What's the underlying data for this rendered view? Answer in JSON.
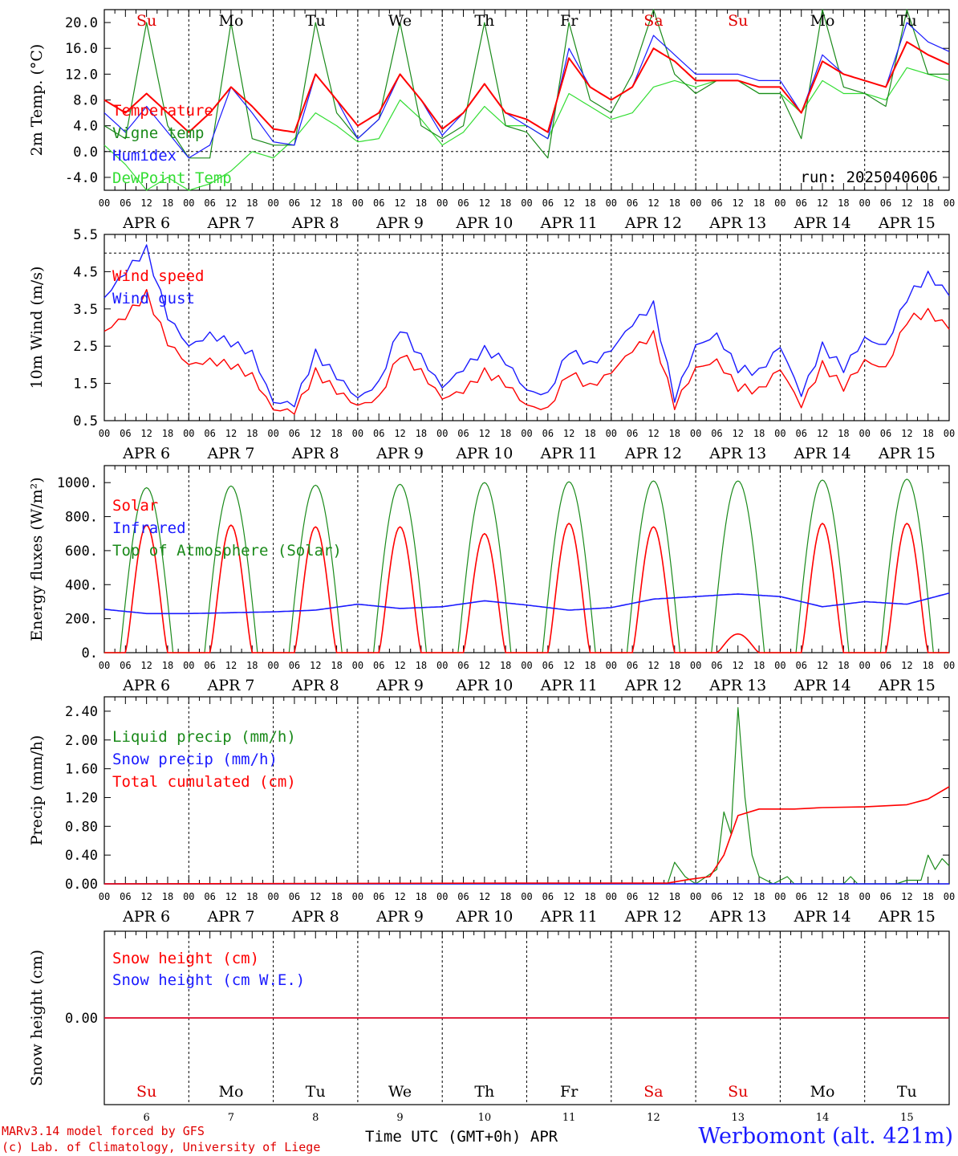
{
  "days": {
    "abbr": [
      "Su",
      "Mo",
      "Tu",
      "We",
      "Th",
      "Fr",
      "Sa",
      "Su",
      "Mo",
      "Tu"
    ],
    "abbr_colors": [
      "#e00000",
      "#000000",
      "#000000",
      "#000000",
      "#000000",
      "#000000",
      "#e00000",
      "#e00000",
      "#000000",
      "#000000"
    ],
    "dates": [
      "APR  6",
      "APR  7",
      "APR  8",
      "APR  9",
      "APR 10",
      "APR 11",
      "APR 12",
      "APR 13",
      "APR 14",
      "APR 15"
    ],
    "numbers": [
      "6",
      "7",
      "8",
      "9",
      "10",
      "11",
      "12",
      "13",
      "14",
      "15"
    ],
    "hour_ticks": [
      "00",
      "06",
      "12",
      "18"
    ],
    "end_tick": "00"
  },
  "footer": {
    "credit_line1": "MARv3.14 model forced by GFS",
    "credit_line2": "(c) Lab. of Climatology, University of Liege",
    "xaxis_title": "Time UTC (GMT+0h) APR",
    "station": "Werbomont (alt. 421m)"
  },
  "colors": {
    "red": "#ff0000",
    "green": "#1a8a1a",
    "blue": "#1a1aff",
    "lightgreen": "#33dd33"
  },
  "chart_data": [
    {
      "type": "line",
      "ylabel": "2m Temp. (°C)",
      "annotation": "run: 2025040606",
      "ylim": [
        -6,
        22
      ],
      "yticks": [
        "20.0",
        "16.0",
        "12.0",
        "8.0",
        "4.0",
        "0.0",
        "-4.0"
      ],
      "ytick_values": [
        20,
        16,
        12,
        8,
        4,
        0,
        -4
      ],
      "dashed_reference_y": 0,
      "x_hours": [
        0,
        6,
        12,
        18,
        24,
        30,
        36,
        42,
        48,
        54,
        60,
        66,
        72,
        78,
        84,
        90,
        96,
        102,
        108,
        114,
        120,
        126,
        132,
        138,
        144,
        150,
        156,
        162,
        168,
        174,
        180,
        186,
        192,
        198,
        204,
        210,
        216,
        222,
        228,
        234,
        240
      ],
      "series": [
        {
          "name": "Temperature",
          "color": "#ff0000",
          "values": [
            8,
            6,
            9,
            6,
            3,
            6,
            10,
            7,
            3.5,
            3,
            12,
            8,
            4,
            6,
            12,
            8,
            3.5,
            6,
            10.5,
            6,
            5,
            3,
            14.5,
            10,
            8,
            10,
            16,
            14,
            11,
            11,
            11,
            10,
            10,
            6,
            14,
            12,
            11,
            10,
            17,
            15,
            13.5
          ]
        },
        {
          "name": "Vigne temp",
          "color": "#1a8a1a",
          "values": [
            4,
            2,
            20,
            4,
            -1,
            -1,
            20,
            2,
            1,
            1,
            20,
            6,
            2,
            5,
            20,
            4,
            2,
            4,
            20,
            4,
            3,
            -1,
            20,
            8,
            6,
            12,
            22,
            12,
            9,
            11,
            11,
            9,
            9,
            2,
            22,
            10,
            9,
            7,
            22,
            12,
            12
          ]
        },
        {
          "name": "Humidex",
          "color": "#1a1aff",
          "values": [
            6,
            3,
            7,
            3,
            -1,
            1,
            10,
            6,
            1.5,
            1,
            12,
            8,
            2,
            5,
            12,
            8,
            2.5,
            6,
            10.5,
            6,
            4,
            2,
            16,
            10,
            8,
            10,
            18,
            15,
            12,
            12,
            12,
            11,
            11,
            6,
            15,
            12,
            11,
            10,
            20,
            17,
            15.5
          ]
        },
        {
          "name": "DewPoint Temp",
          "color": "#33dd33",
          "values": [
            1,
            -2,
            -6,
            -4,
            -6,
            -5,
            -3,
            0,
            -1,
            2,
            6,
            4,
            1.5,
            2,
            8,
            5,
            1,
            3,
            7,
            4,
            4,
            2,
            9,
            7,
            5,
            6,
            10,
            11,
            10,
            11,
            11,
            9,
            9,
            6,
            11,
            9,
            9,
            8,
            13,
            12,
            11
          ]
        }
      ]
    },
    {
      "type": "line",
      "ylabel": "10m Wind (m/s)",
      "ylim": [
        0.5,
        5.5
      ],
      "yticks": [
        "5.5",
        "4.5",
        "3.5",
        "2.5",
        "1.5",
        "0.5"
      ],
      "ytick_values": [
        5.5,
        4.5,
        3.5,
        2.5,
        1.5,
        0.5
      ],
      "dashed_reference_y": 5,
      "x_hours": [
        0,
        6,
        12,
        18,
        24,
        30,
        36,
        42,
        48,
        54,
        60,
        66,
        72,
        78,
        84,
        90,
        96,
        102,
        108,
        114,
        120,
        126,
        132,
        138,
        144,
        150,
        156,
        162,
        168,
        174,
        180,
        186,
        192,
        198,
        204,
        210,
        216,
        222,
        228,
        234,
        240
      ],
      "series": [
        {
          "name": "Wind speed",
          "color": "#ff0000",
          "values": [
            2.9,
            3.3,
            3.9,
            2.6,
            2.0,
            2.1,
            2.0,
            1.7,
            0.8,
            0.75,
            1.8,
            1.3,
            0.9,
            1.1,
            2.3,
            1.8,
            1.1,
            1.3,
            1.8,
            1.5,
            0.9,
            0.8,
            1.8,
            1.4,
            1.8,
            2.4,
            2.8,
            0.9,
            1.9,
            2.1,
            1.4,
            1.3,
            1.9,
            0.9,
            2.0,
            1.4,
            2.1,
            1.9,
            3.2,
            3.4,
            3.0
          ]
        },
        {
          "name": "Wind gust",
          "color": "#1a1aff",
          "values": [
            3.8,
            4.5,
            5.1,
            3.3,
            2.5,
            2.8,
            2.6,
            2.3,
            1.0,
            0.95,
            2.3,
            1.7,
            1.1,
            1.5,
            3.0,
            2.2,
            1.4,
            1.9,
            2.4,
            2.1,
            1.3,
            1.2,
            2.4,
            2.0,
            2.4,
            3.1,
            3.6,
            1.1,
            2.5,
            2.8,
            1.9,
            1.8,
            2.5,
            1.2,
            2.5,
            1.9,
            2.7,
            2.5,
            3.8,
            4.4,
            3.9
          ]
        }
      ]
    },
    {
      "type": "line",
      "ylabel": "Energy fluxes (W/m²)",
      "ylim": [
        0,
        1100
      ],
      "yticks": [
        "1000.",
        "800.",
        "600.",
        "400.",
        "200.",
        "0."
      ],
      "ytick_values": [
        1000,
        800,
        600,
        400,
        200,
        0
      ],
      "solar_peaks": [
        750,
        750,
        740,
        740,
        700,
        760,
        740,
        110,
        760,
        760
      ],
      "toa_peaks": [
        970,
        980,
        985,
        990,
        1000,
        1005,
        1010,
        1010,
        1015,
        1020
      ],
      "infrared_hours": [
        0,
        12,
        24,
        36,
        48,
        60,
        72,
        84,
        96,
        108,
        120,
        132,
        144,
        156,
        168,
        180,
        192,
        204,
        216,
        228,
        240
      ],
      "infrared_values": [
        255,
        230,
        230,
        235,
        240,
        250,
        285,
        260,
        270,
        305,
        280,
        250,
        265,
        315,
        330,
        345,
        330,
        270,
        300,
        285,
        350
      ],
      "series": [
        {
          "name": "Solar",
          "color": "#ff0000"
        },
        {
          "name": "Infrared",
          "color": "#1a1aff"
        },
        {
          "name": "Top of Atmosphere (Solar)",
          "color": "#1a8a1a"
        }
      ]
    },
    {
      "type": "line",
      "ylabel": "Precip (mm/h)",
      "ylim": [
        0,
        2.6
      ],
      "yticks": [
        "2.40",
        "2.00",
        "1.60",
        "1.20",
        "0.80",
        "0.40",
        "0.00"
      ],
      "ytick_values": [
        2.4,
        2.0,
        1.6,
        1.2,
        0.8,
        0.4,
        0.0
      ],
      "liquid_points": [
        [
          0,
          0
        ],
        [
          160,
          0
        ],
        [
          162,
          0.3
        ],
        [
          165,
          0.1
        ],
        [
          168,
          0
        ],
        [
          174,
          0.2
        ],
        [
          176,
          1.0
        ],
        [
          178,
          0.7
        ],
        [
          180,
          2.45
        ],
        [
          182,
          1.2
        ],
        [
          184,
          0.4
        ],
        [
          186,
          0.1
        ],
        [
          190,
          0
        ],
        [
          194,
          0.1
        ],
        [
          196,
          0
        ],
        [
          210,
          0
        ],
        [
          212,
          0.1
        ],
        [
          214,
          0
        ],
        [
          225,
          0
        ],
        [
          228,
          0.05
        ],
        [
          232,
          0.05
        ],
        [
          234,
          0.4
        ],
        [
          236,
          0.2
        ],
        [
          238,
          0.35
        ],
        [
          240,
          0.25
        ]
      ],
      "cumulated_points": [
        [
          0,
          0
        ],
        [
          116,
          0.01
        ],
        [
          160,
          0.01
        ],
        [
          166,
          0.06
        ],
        [
          172,
          0.1
        ],
        [
          176,
          0.4
        ],
        [
          180,
          0.95
        ],
        [
          186,
          1.04
        ],
        [
          196,
          1.04
        ],
        [
          204,
          1.06
        ],
        [
          216,
          1.07
        ],
        [
          228,
          1.1
        ],
        [
          234,
          1.18
        ],
        [
          240,
          1.35
        ]
      ],
      "series": [
        {
          "name": "Liquid precip (mm/h)",
          "color": "#1a8a1a"
        },
        {
          "name": "Snow precip (mm/h)",
          "color": "#1a1aff"
        },
        {
          "name": "Total cumulated (cm)",
          "color": "#ff0000"
        }
      ]
    },
    {
      "type": "line",
      "ylabel": "Snow height (cm)",
      "ylim": [
        -1,
        1
      ],
      "yticks": [
        "0.00"
      ],
      "ytick_values": [
        0
      ],
      "series": [
        {
          "name": "Snow height (cm)",
          "color": "#ff0000",
          "values": [
            0,
            0
          ]
        },
        {
          "name": "Snow height (cm W.E.)",
          "color": "#1a1aff",
          "values": [
            0,
            0
          ]
        }
      ]
    }
  ]
}
